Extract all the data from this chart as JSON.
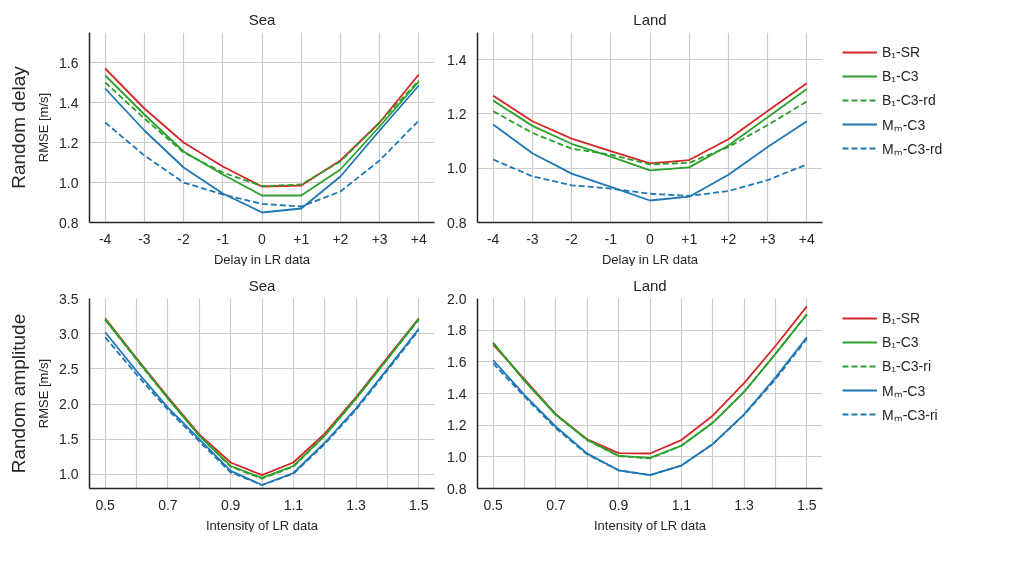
{
  "chart_data": [
    {
      "type": "line",
      "title": "Sea",
      "xlabel": "Delay in LR data",
      "ylabel": "RMSE [m/s]",
      "annotations": [
        "Random delay"
      ],
      "x": [
        -4,
        -3,
        -2,
        -1,
        0,
        1,
        2,
        3,
        4
      ],
      "xlim": [
        -4.4,
        4.4
      ],
      "xticks": [
        -4,
        -3,
        -2,
        -1,
        0,
        {
          "value": 1,
          "label": "+1"
        },
        {
          "value": 2,
          "label": "+2"
        },
        {
          "value": 3,
          "label": "+3"
        },
        {
          "value": 4,
          "label": "+4"
        }
      ],
      "ylim": [
        0.8,
        1.75
      ],
      "yticks": [
        0.8,
        {
          "value": 1,
          "label": "1.0"
        },
        1.2,
        1.4,
        1.6
      ],
      "grid": true,
      "legend": false,
      "series": [
        {
          "color": "#d62728",
          "line_style": "solid",
          "values": [
            1.57,
            1.37,
            1.2,
            1.08,
            0.98,
            0.985,
            1.11,
            1.3,
            1.54
          ]
        },
        {
          "color": "#2ca02c",
          "line_style": "solid",
          "values": [
            1.535,
            1.34,
            1.155,
            1.04,
            0.935,
            0.935,
            1.065,
            1.28,
            1.505
          ]
        },
        {
          "color": "#2ca02c",
          "line_style": "dashed",
          "values": [
            1.5,
            1.32,
            1.15,
            1.05,
            0.982,
            0.99,
            1.105,
            1.3,
            1.51
          ]
        },
        {
          "color": "#1f77b4",
          "line_style": "solid",
          "values": [
            1.47,
            1.26,
            1.075,
            0.945,
            0.85,
            0.87,
            1.03,
            1.26,
            1.485
          ]
        },
        {
          "color": "#1f77b4",
          "line_style": "dashed",
          "values": [
            1.3,
            1.135,
            1.0,
            0.94,
            0.893,
            0.88,
            0.955,
            1.11,
            1.31
          ]
        }
      ]
    },
    {
      "type": "line",
      "title": "Land",
      "xlabel": "Delay in LR data",
      "x": [
        -4,
        -3,
        -2,
        -1,
        0,
        1,
        2,
        3,
        4
      ],
      "xlim": [
        -4.4,
        4.4
      ],
      "xticks": [
        -4,
        -3,
        -2,
        -1,
        0,
        {
          "value": 1,
          "label": "+1"
        },
        {
          "value": 2,
          "label": "+2"
        },
        {
          "value": 3,
          "label": "+3"
        },
        {
          "value": 4,
          "label": "+4"
        }
      ],
      "ylim": [
        0.8,
        1.5
      ],
      "yticks": [
        0.8,
        {
          "value": 1,
          "label": "1.0"
        },
        1.2,
        1.4
      ],
      "grid": true,
      "legend": "right",
      "series": [
        {
          "name": "B₁-SR",
          "color": "#d62728",
          "line_style": "solid",
          "values": [
            1.267,
            1.173,
            1.109,
            1.063,
            1.018,
            1.03,
            1.107,
            1.211,
            1.313
          ]
        },
        {
          "name": "B₁-C3",
          "color": "#2ca02c",
          "line_style": "solid",
          "values": [
            1.249,
            1.156,
            1.09,
            1.043,
            0.992,
            1.003,
            1.084,
            1.188,
            1.292
          ]
        },
        {
          "name": "B₁-C3-rd",
          "color": "#2ca02c",
          "line_style": "dashed",
          "values": [
            1.21,
            1.13,
            1.072,
            1.05,
            1.014,
            1.02,
            1.078,
            1.159,
            1.246
          ]
        },
        {
          "name": "Mₘ-C3",
          "color": "#1f77b4",
          "line_style": "solid",
          "values": [
            1.161,
            1.055,
            0.98,
            0.931,
            0.881,
            0.895,
            0.976,
            1.078,
            1.173
          ]
        },
        {
          "name": "Mₘ-C3-rd",
          "color": "#1f77b4",
          "line_style": "dashed",
          "values": [
            1.032,
            0.97,
            0.937,
            0.925,
            0.906,
            0.898,
            0.916,
            0.956,
            1.014
          ]
        }
      ]
    },
    {
      "type": "line",
      "title": "Sea",
      "xlabel": "Intensity of LR data",
      "ylabel": "RMSE [m/s]",
      "annotations": [
        "Random amplitude"
      ],
      "x": [
        0.5,
        0.6,
        0.7,
        0.8,
        0.9,
        1.0,
        1.1,
        1.2,
        1.3,
        1.4,
        1.5
      ],
      "xlim": [
        0.45,
        1.55
      ],
      "xticks": [
        0.5,
        {
          "value": 0.6,
          "label": null
        },
        0.7,
        {
          "value": 0.8,
          "label": null
        },
        0.9,
        {
          "value": 1.0,
          "label": null
        },
        1.1,
        {
          "value": 1.2,
          "label": null
        },
        1.3,
        {
          "value": 1.4,
          "label": null
        },
        1.5
      ],
      "ylim": [
        0.8,
        3.5
      ],
      "yticks": [
        {
          "value": 1,
          "label": "1.0"
        },
        1.5,
        {
          "value": 2,
          "label": "2.0"
        },
        2.5,
        {
          "value": 3,
          "label": "3.0"
        },
        3.5
      ],
      "grid": true,
      "legend": false,
      "series": [
        {
          "color": "#d62728",
          "line_style": "solid",
          "values": [
            3.22,
            2.65,
            2.1,
            1.57,
            1.17,
            0.99,
            1.17,
            1.58,
            2.1,
            2.66,
            3.22
          ]
        },
        {
          "color": "#2ca02c",
          "line_style": "solid",
          "values": [
            3.2,
            2.64,
            2.08,
            1.55,
            1.12,
            0.95,
            1.12,
            1.55,
            2.08,
            2.64,
            3.21
          ]
        },
        {
          "color": "#2ca02c",
          "line_style": "dashed",
          "values": [
            3.2,
            2.63,
            2.08,
            1.55,
            1.11,
            0.94,
            1.11,
            1.55,
            2.08,
            2.64,
            3.2
          ]
        },
        {
          "color": "#1f77b4",
          "line_style": "solid",
          "values": [
            3.02,
            2.47,
            1.95,
            1.5,
            1.05,
            0.85,
            1.02,
            1.45,
            1.94,
            2.5,
            3.07
          ]
        },
        {
          "color": "#1f77b4",
          "line_style": "dashed",
          "values": [
            2.95,
            2.42,
            1.92,
            1.47,
            1.03,
            0.85,
            1.01,
            1.43,
            1.92,
            2.48,
            3.05
          ]
        }
      ]
    },
    {
      "type": "line",
      "title": "Land",
      "xlabel": "Intensity of LR data",
      "x": [
        0.5,
        0.6,
        0.7,
        0.8,
        0.9,
        1.0,
        1.1,
        1.2,
        1.3,
        1.4,
        1.5
      ],
      "xlim": [
        0.45,
        1.55
      ],
      "xticks": [
        0.5,
        {
          "value": 0.6,
          "label": null
        },
        0.7,
        {
          "value": 0.8,
          "label": null
        },
        0.9,
        {
          "value": 1.0,
          "label": null
        },
        1.1,
        {
          "value": 1.2,
          "label": null
        },
        1.3,
        {
          "value": 1.4,
          "label": null
        },
        1.5
      ],
      "ylim": [
        0.8,
        2.0
      ],
      "yticks": [
        0.8,
        {
          "value": 1,
          "label": "1.0"
        },
        1.2,
        1.4,
        1.6,
        1.8,
        {
          "value": 2,
          "label": "2.0"
        }
      ],
      "grid": true,
      "legend": "right",
      "series": [
        {
          "name": "B₁-SR",
          "color": "#d62728",
          "line_style": "solid",
          "values": [
            1.709,
            1.49,
            1.268,
            1.11,
            1.023,
            1.021,
            1.106,
            1.26,
            1.466,
            1.7,
            1.95
          ]
        },
        {
          "name": "B₁-C3",
          "color": "#2ca02c",
          "line_style": "solid",
          "values": [
            1.72,
            1.48,
            1.265,
            1.108,
            1.006,
            0.993,
            1.07,
            1.215,
            1.41,
            1.65,
            1.9
          ]
        },
        {
          "name": "B₁-C3-ri",
          "color": "#2ca02c",
          "line_style": "dashed",
          "values": [
            1.72,
            1.48,
            1.265,
            1.105,
            1.005,
            0.99,
            1.07,
            1.215,
            1.41,
            1.65,
            1.9
          ]
        },
        {
          "name": "Mₘ-C3",
          "color": "#1f77b4",
          "line_style": "solid",
          "values": [
            1.61,
            1.39,
            1.19,
            1.02,
            0.915,
            0.885,
            0.945,
            1.08,
            1.268,
            1.5,
            1.755
          ]
        },
        {
          "name": "Mₘ-C3-ri",
          "color": "#1f77b4",
          "line_style": "dashed",
          "values": [
            1.59,
            1.38,
            1.18,
            1.015,
            0.915,
            0.885,
            0.945,
            1.08,
            1.265,
            1.49,
            1.745
          ]
        }
      ]
    }
  ]
}
